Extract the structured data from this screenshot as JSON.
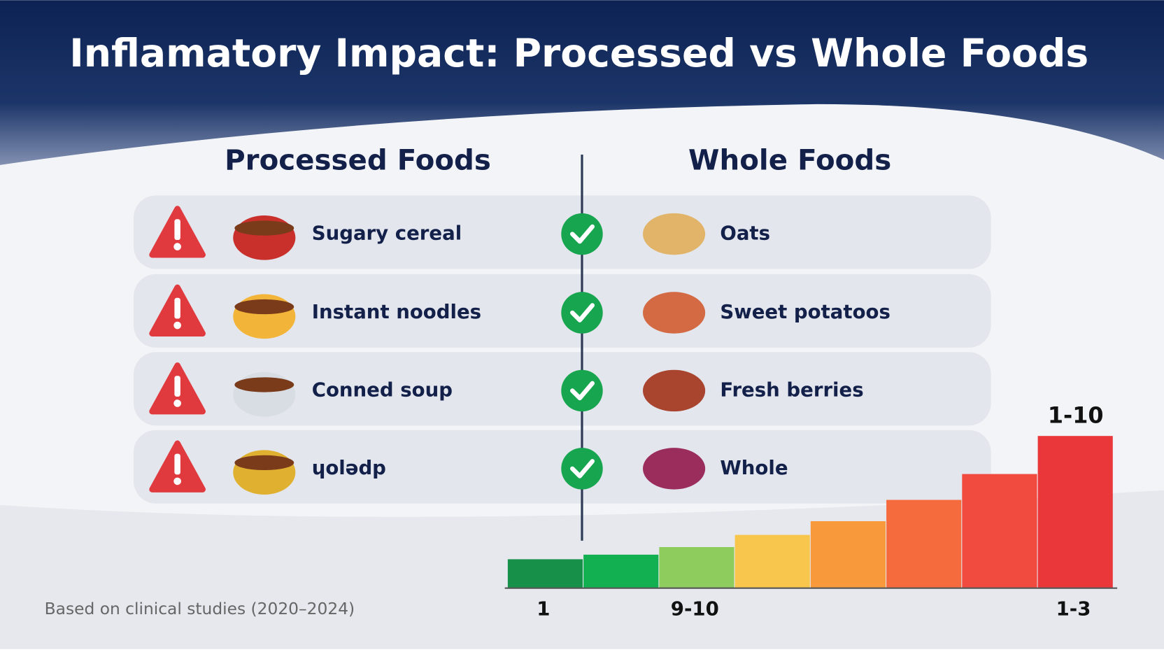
{
  "header": {
    "title": "Inflamatory Impact: Processed vs Whole Foods"
  },
  "columns": {
    "processed": "Processed Foods",
    "whole": "Whole Foods"
  },
  "rows": [
    {
      "processed": "Sugary cereal",
      "whole": "Oats"
    },
    {
      "processed": "Instant noodles",
      "whole": "Sweet potatoos"
    },
    {
      "processed": "Conned soup",
      "whole": "Fresh berries"
    },
    {
      "processed": "ɥolədp",
      "whole": "Whole"
    }
  ],
  "footer": {
    "note": "Based on clinical studies (2020–2024)"
  },
  "chart_data": {
    "type": "bar",
    "annotation": "1-10",
    "categories": [
      "1",
      null,
      "9-10",
      null,
      null,
      null,
      null,
      "1-3"
    ],
    "values": [
      1.9,
      2.2,
      2.7,
      3.5,
      4.4,
      5.8,
      7.5,
      10
    ],
    "colors": [
      "#17904a",
      "#13b052",
      "#8fcc5e",
      "#f8c54d",
      "#f8993c",
      "#f66b3e",
      "#f14b3f",
      "#e9373a"
    ],
    "ylim": [
      0,
      10
    ]
  }
}
